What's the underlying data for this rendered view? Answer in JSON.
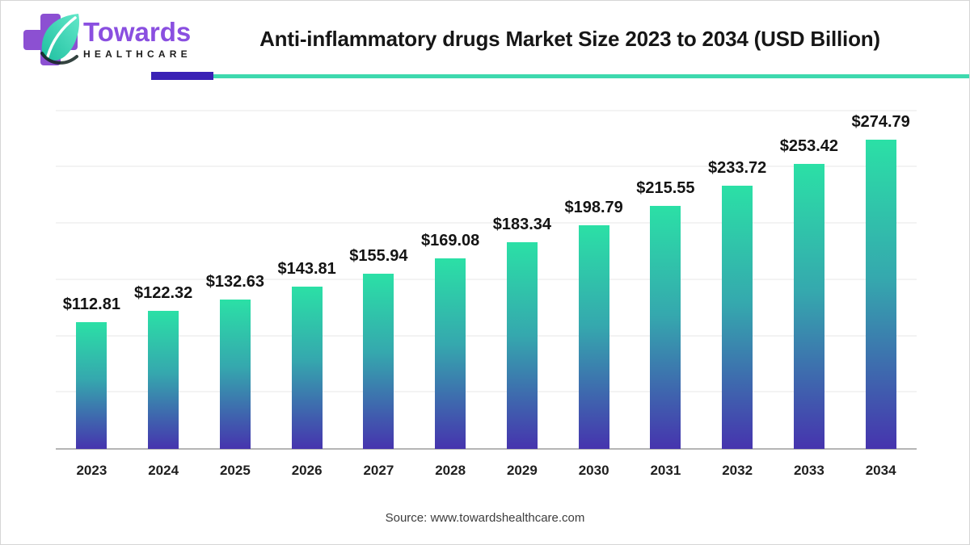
{
  "header": {
    "logo": {
      "word1": "Towards",
      "word2": "HEALTHCARE",
      "cross_color": "#8c50d2",
      "word1_color": "#8a4fe0",
      "leaf_color_top": "#63e8c9",
      "leaf_color_bottom": "#1ebfa0"
    },
    "title": "Anti-inflammatory drugs Market Size 2023 to 2034 (USD Billion)",
    "divider": {
      "accent_color": "#3a21b5",
      "line_color": "#3ed9ae"
    }
  },
  "chart_data": {
    "type": "bar",
    "title": "Anti-inflammatory drugs Market Size 2023 to 2034 (USD Billion)",
    "categories": [
      "2023",
      "2024",
      "2025",
      "2026",
      "2027",
      "2028",
      "2029",
      "2030",
      "2031",
      "2032",
      "2033",
      "2034"
    ],
    "values": [
      112.81,
      122.32,
      132.63,
      143.81,
      155.94,
      169.08,
      183.34,
      198.79,
      215.55,
      233.72,
      253.42,
      274.79
    ],
    "labels": [
      "$112.81",
      "$122.32",
      "$132.63",
      "$143.81",
      "$155.94",
      "$169.08",
      "$183.34",
      "$198.79",
      "$215.55",
      "$233.72",
      "$253.42",
      "$274.79"
    ],
    "xlabel": "",
    "ylabel": "",
    "ylim": [
      0,
      300
    ],
    "gridline_values": [
      50,
      100,
      150,
      200,
      250,
      300
    ],
    "grid": "horizontal-only",
    "legend": "none",
    "bar_gradient_top": "#2be0a6",
    "bar_gradient_bottom": "#4634ae",
    "gridline_color": "#f3f3f3",
    "axis_line_color": "#b5b5b5",
    "value_label_color": "#141414"
  },
  "footer": {
    "source": "Source: www.towardshealthcare.com"
  }
}
